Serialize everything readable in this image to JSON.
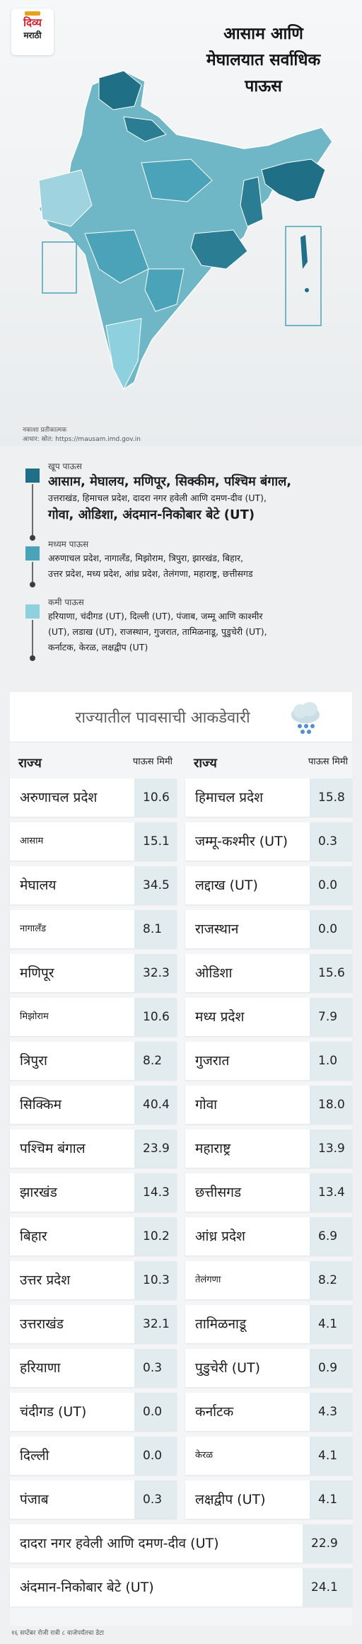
{
  "brand": {
    "line1": "दिव्य",
    "line2": "मराठी"
  },
  "headline": {
    "line1": "आसाम आणि",
    "line2": "मेघालयात सर्वाधिक",
    "line3": "पाऊस"
  },
  "map_note": {
    "line1": "नकाशा प्रतीकात्मक",
    "line2": "आधार: स्रोत: https://mausam.imd.gov.in"
  },
  "colors": {
    "heavy": "#1f6f86",
    "medium": "#4aa3b8",
    "light": "#8fd0de"
  },
  "legend": [
    {
      "title": "खूप पाऊस",
      "color": "#1f6f86",
      "lines": [
        "आसाम, मेघालय, मणिपूर, सिक्कीम, पश्चिम बंगाल,",
        "उत्तराखंड, हिमाचल प्रदेश, दादरा नगर हवेली आणि दमण-दीव (UT),",
        "गोवा, ओडिशा, अंदमान-निकोबार बेटे (UT)"
      ]
    },
    {
      "title": "मध्यम पाऊस",
      "color": "#4aa3b8",
      "lines": [
        "अरुणाचल प्रदेश, नागालँड, मिझोराम, त्रिपुरा, झारखंड, बिहार,",
        "उत्तर प्रदेश, मध्य प्रदेश, आंध्र प्रदेश, तेलंगणा, महाराष्ट्र, छत्तीसगड"
      ]
    },
    {
      "title": "कमी पाऊस",
      "color": "#8fd0de",
      "lines": [
        "हरियाणा, चंदीगड (UT), दिल्ली (UT), पंजाब, जम्मू आणि काश्मीर",
        "(UT), लडाख (UT), राजस्थान, गुजरात, तामिळनाडू, पुडुचेरी (UT),",
        "कर्नाटक, केरळ, लक्षद्वीप (UT)"
      ]
    }
  ],
  "table": {
    "title": "राज्यातील पावसाची आकडेवारी",
    "icon": "rain-cloud-icon",
    "header_state": "राज्य",
    "header_rain": "पाऊस मिमी",
    "left": [
      {
        "name": "अरुणाचल प्रदेश",
        "value": "10.6"
      },
      {
        "name": "आसाम",
        "value": "15.1",
        "small": true
      },
      {
        "name": "मेघालय",
        "value": "34.5"
      },
      {
        "name": "नागालँड",
        "value": "8.1",
        "small": true
      },
      {
        "name": "मणिपूर",
        "value": "32.3"
      },
      {
        "name": "मिझोराम",
        "value": "10.6",
        "small": true
      },
      {
        "name": "त्रिपुरा",
        "value": "8.2"
      },
      {
        "name": "सिक्किम",
        "value": "40.4"
      },
      {
        "name": "पश्चिम बंगाल",
        "value": "23.9"
      },
      {
        "name": "झारखंड",
        "value": "14.3"
      },
      {
        "name": "बिहार",
        "value": "10.2"
      },
      {
        "name": "उत्तर प्रदेश",
        "value": "10.3"
      },
      {
        "name": "उत्तराखंड",
        "value": "32.1"
      },
      {
        "name": "हरियाणा",
        "value": "0.3"
      },
      {
        "name": "चंदीगड (UT)",
        "value": "0.0"
      },
      {
        "name": "दिल्ली",
        "value": "0.0"
      },
      {
        "name": "पंजाब",
        "value": "0.3"
      }
    ],
    "right": [
      {
        "name": "हिमाचल प्रदेश",
        "value": "15.8"
      },
      {
        "name": "जम्मू-कश्मीर (UT)",
        "value": "0.3"
      },
      {
        "name": "लद्दाख (UT)",
        "value": "0.0"
      },
      {
        "name": "राजस्थान",
        "value": "0.0"
      },
      {
        "name": "ओडिशा",
        "value": "15.6"
      },
      {
        "name": "मध्य प्रदेश",
        "value": "7.9"
      },
      {
        "name": "गुजरात",
        "value": "1.0"
      },
      {
        "name": "गोवा",
        "value": "18.0"
      },
      {
        "name": "महाराष्ट्र",
        "value": "13.9"
      },
      {
        "name": "छत्तीसगड",
        "value": "13.4"
      },
      {
        "name": "आंध्र प्रदेश",
        "value": "6.9"
      },
      {
        "name": "तेलंगणा",
        "value": "8.2",
        "small": true
      },
      {
        "name": "तामिळनाडू",
        "value": "4.1"
      },
      {
        "name": "पुडुचेरी (UT)",
        "value": "0.9"
      },
      {
        "name": "कर्नाटक",
        "value": "4.3"
      },
      {
        "name": "केरळ",
        "value": "4.1",
        "small": true
      },
      {
        "name": "लक्षद्वीप (UT)",
        "value": "4.1"
      }
    ],
    "wide": [
      {
        "name": "दादरा नगर हवेली आणि दमण-दीव (UT)",
        "value": "22.9"
      },
      {
        "name": "अंदमान-निकोबार बेटे (UT)",
        "value": "24.1"
      }
    ]
  },
  "footnote": "१६ सप्टेंबर रोजी रात्री ८ वाजेपर्यंतचा डेटा"
}
